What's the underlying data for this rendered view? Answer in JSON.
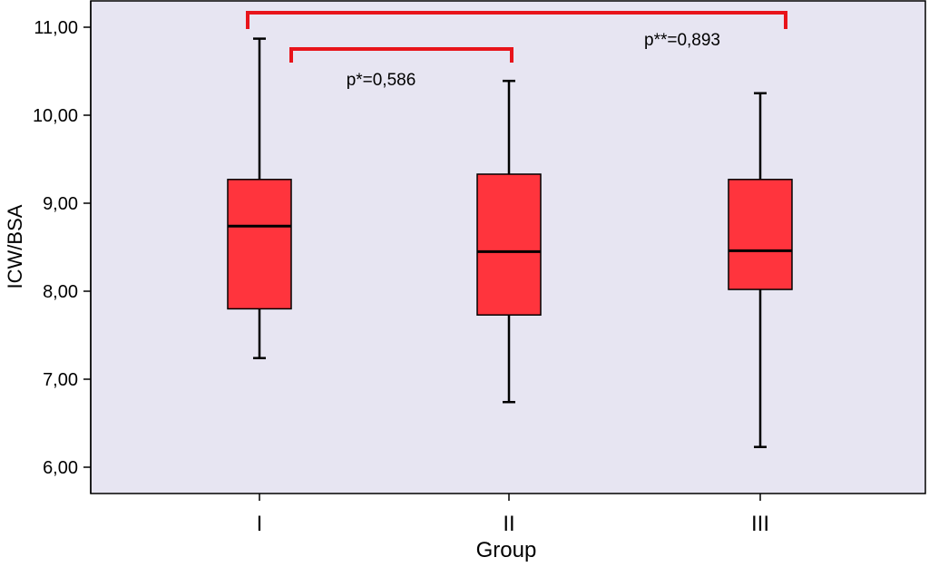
{
  "chart_data": {
    "type": "boxplot",
    "xlabel": "Group",
    "ylabel": "ICW/BSA",
    "ylim": [
      5.7,
      11.2
    ],
    "y_ticks": [
      "6,00",
      "7,00",
      "8,00",
      "9,00",
      "10,00",
      "11,00"
    ],
    "y_tick_values": [
      6,
      7,
      8,
      9,
      10,
      11
    ],
    "categories": [
      "I",
      "II",
      "III"
    ],
    "boxes": [
      {
        "category": "I",
        "min": 7.24,
        "q1": 7.8,
        "median": 8.74,
        "q3": 9.27,
        "max": 10.87
      },
      {
        "category": "II",
        "min": 6.74,
        "q1": 7.73,
        "median": 8.45,
        "q3": 9.33,
        "max": 10.39
      },
      {
        "category": "III",
        "min": 6.23,
        "q1": 8.02,
        "median": 8.46,
        "q3": 9.27,
        "max": 10.25
      }
    ],
    "annotations": [
      {
        "label": "p*=0,586",
        "from": "I",
        "to": "II"
      },
      {
        "label": "p**=0,893",
        "from": "I",
        "to": "III"
      }
    ],
    "grid": false,
    "legend": "none"
  },
  "colors": {
    "plot_background": "#E7E5F2",
    "box_fill": "#FF343D",
    "bracket": "#E8141B",
    "line": "#000000"
  }
}
